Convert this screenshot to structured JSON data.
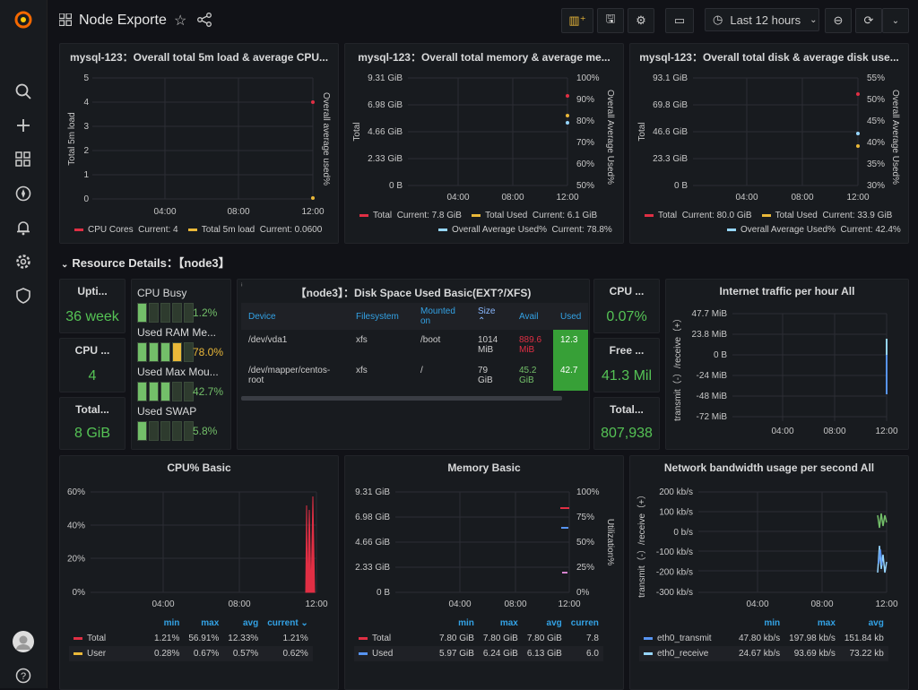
{
  "topbar": {
    "title": "Node Exporte",
    "time_range": "Last 12 hours"
  },
  "colors": {
    "red": "#e02f44",
    "yellow": "#eab839",
    "blue": "#5794f2",
    "cyan": "#8ab8ff",
    "green": "#73bf69",
    "lightblue": "#96d6ff"
  },
  "p1": {
    "title": "mysql-123：Overall total 5m load & average CPU...",
    "ylabel": "Total 5m load",
    "y2label": "Overall average used%",
    "yticks": [
      "5",
      "4",
      "3",
      "2",
      "1",
      "0"
    ],
    "xticks": [
      "04:00",
      "08:00",
      "12:00"
    ],
    "legend": [
      {
        "name": "CPU Cores",
        "current": "Current: 4"
      },
      {
        "name": "Total 5m load",
        "current": "Current: 0.0600"
      }
    ]
  },
  "p2": {
    "title": "mysql-123：Overall total memory & average me...",
    "ylabel": "Total",
    "y2label": "Overall Average Used%",
    "yticks": [
      "9.31 GiB",
      "6.98 GiB",
      "4.66 GiB",
      "2.33 GiB",
      "0 B"
    ],
    "y2ticks": [
      "100%",
      "90%",
      "80%",
      "70%",
      "60%",
      "50%"
    ],
    "xticks": [
      "04:00",
      "08:00",
      "12:00"
    ],
    "legend": [
      {
        "name": "Total",
        "current": "Current: 7.8 GiB"
      },
      {
        "name": "Total Used",
        "current": "Current: 6.1 GiB"
      },
      {
        "name": "Overall Average Used%",
        "current": "Current: 78.8%"
      }
    ]
  },
  "p3": {
    "title": "mysql-123：Overall total disk & average disk use...",
    "ylabel": "Total",
    "y2label": "Overall Average Used%",
    "yticks": [
      "93.1 GiB",
      "69.8 GiB",
      "46.6 GiB",
      "23.3 GiB",
      "0 B"
    ],
    "y2ticks": [
      "55%",
      "50%",
      "45%",
      "40%",
      "35%",
      "30%"
    ],
    "xticks": [
      "04:00",
      "08:00",
      "12:00"
    ],
    "legend": [
      {
        "name": "Total",
        "current": "Current: 80.0 GiB"
      },
      {
        "name": "Total Used",
        "current": "Current: 33.9 GiB"
      },
      {
        "name": "Overall Average Used%",
        "current": "Current: 42.4%"
      }
    ]
  },
  "section": {
    "title": "Resource Details：【node3】"
  },
  "stats": {
    "uptime": {
      "title": "Upti...",
      "value": "36 week"
    },
    "cpu": {
      "title": "CPU ...",
      "value": "4"
    },
    "total_mem": {
      "title": "Total...",
      "value": "8 GiB"
    },
    "cpu_iowait": {
      "title": "CPU ...",
      "value": "0.07%"
    },
    "free": {
      "title": "Free ...",
      "value": "41.3 Mil"
    },
    "total2": {
      "title": "Total...",
      "value": "807,938"
    }
  },
  "gauges": [
    {
      "label": "CPU Busy",
      "value": "1.2%",
      "lit": 1,
      "color": "#73bf69"
    },
    {
      "label": "Used RAM Me...",
      "value": "78.0%",
      "lit": 4,
      "color": "#eab839"
    },
    {
      "label": "Used Max Mou...",
      "value": "42.7%",
      "lit": 3,
      "color": "#73bf69"
    },
    {
      "label": "Used SWAP",
      "value": "5.8%",
      "lit": 1,
      "color": "#73bf69"
    }
  ],
  "disk": {
    "title": "【node3】：Disk Space Used Basic(EXT?/XFS)",
    "headers": [
      "Device",
      "Filesystem",
      "Mounted on",
      "Size ⌃",
      "Avail",
      "Used"
    ],
    "rows": [
      {
        "device": "/dev/vda1",
        "fs": "xfs",
        "mount": "/boot",
        "size": "1014 MiB",
        "avail": "889.6 MiB",
        "used": "12.3"
      },
      {
        "device": "/dev/mapper/centos-root",
        "fs": "xfs",
        "mount": "/",
        "size": "79 GiB",
        "avail": "45.2 GiB",
        "used": "42.7"
      }
    ]
  },
  "traffic": {
    "title": "Internet traffic per hour All",
    "ylabel": "transmit（-）/receive（+）",
    "yticks": [
      "47.7 MiB",
      "23.8 MiB",
      "0 B",
      "-24 MiB",
      "-48 MiB",
      "-72 MiB"
    ],
    "xticks": [
      "04:00",
      "08:00",
      "12:00"
    ]
  },
  "cpu_basic": {
    "title": "CPU% Basic",
    "yticks": [
      "60%",
      "40%",
      "20%",
      "0%"
    ],
    "xticks": [
      "04:00",
      "08:00",
      "12:00"
    ],
    "headers": [
      "min",
      "max",
      "avg",
      "current ⌄"
    ],
    "rows": [
      {
        "name": "Total",
        "min": "1.21%",
        "max": "56.91%",
        "avg": "12.33%",
        "cur": "1.21%"
      },
      {
        "name": "User",
        "min": "0.28%",
        "max": "0.67%",
        "avg": "0.57%",
        "cur": "0.62%"
      }
    ]
  },
  "mem_basic": {
    "title": "Memory Basic",
    "y2label": "Utilization%",
    "yticks": [
      "9.31 GiB",
      "6.98 GiB",
      "4.66 GiB",
      "2.33 GiB",
      "0 B"
    ],
    "y2ticks": [
      "100%",
      "75%",
      "50%",
      "25%",
      "0%"
    ],
    "xticks": [
      "04:00",
      "08:00",
      "12:00"
    ],
    "headers": [
      "min",
      "max",
      "avg",
      "curren"
    ],
    "rows": [
      {
        "name": "Total",
        "min": "7.80 GiB",
        "max": "7.80 GiB",
        "avg": "7.80 GiB",
        "cur": "7.8"
      },
      {
        "name": "Used",
        "min": "5.97 GiB",
        "max": "6.24 GiB",
        "avg": "6.13 GiB",
        "cur": "6.0"
      }
    ]
  },
  "net": {
    "title": "Network bandwidth usage per second All",
    "ylabel": "transmit（-）/receive（+）",
    "yticks": [
      "200 kb/s",
      "100 kb/s",
      "0 b/s",
      "-100 kb/s",
      "-200 kb/s",
      "-300 kb/s"
    ],
    "xticks": [
      "04:00",
      "08:00",
      "12:00"
    ],
    "headers": [
      "min",
      "max",
      "avg"
    ],
    "rows": [
      {
        "name": "eth0_transmit",
        "min": "47.80 kb/s",
        "max": "197.98 kb/s",
        "avg": "151.84 kb"
      },
      {
        "name": "eth0_receive",
        "min": "24.67 kb/s",
        "max": "93.69 kb/s",
        "avg": "73.22 kb"
      }
    ]
  }
}
